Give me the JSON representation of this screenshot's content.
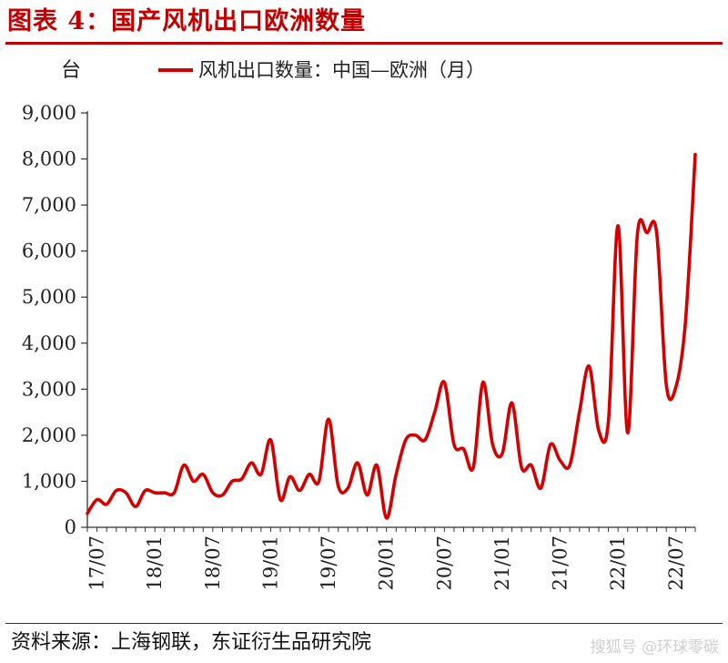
{
  "title": "图表 4：国产风机出口欧洲数量",
  "source": "资料来源：上海钢联，东证衍生品研究院",
  "watermark": "搜狐号 @环球零碳",
  "chart_data": {
    "type": "line",
    "y_unit": "台",
    "ylim": [
      0,
      9000
    ],
    "y_ticks": [
      0,
      1000,
      2000,
      3000,
      4000,
      5000,
      6000,
      7000,
      8000,
      9000
    ],
    "y_tick_labels": [
      "0",
      "1,000",
      "2,000",
      "3,000",
      "4,000",
      "5,000",
      "6,000",
      "7,000",
      "8,000",
      "9,000"
    ],
    "x_tick_labels": [
      "17/07",
      "18/01",
      "18/07",
      "19/01",
      "19/07",
      "20/01",
      "20/07",
      "21/01",
      "21/07",
      "22/01",
      "22/07"
    ],
    "x_tick_index": [
      1,
      7,
      13,
      19,
      25,
      31,
      37,
      43,
      49,
      55,
      61
    ],
    "colors": {
      "line": "#d40000",
      "title": "#c00000"
    },
    "grid": false,
    "legend_position": "top",
    "series": [
      {
        "name": "风机出口数量：中国—欧洲（月）",
        "values": [
          300,
          600,
          500,
          800,
          750,
          450,
          800,
          750,
          750,
          750,
          1350,
          1000,
          1150,
          750,
          700,
          1000,
          1050,
          1400,
          1150,
          1900,
          600,
          1100,
          800,
          1150,
          1000,
          2350,
          900,
          850,
          1400,
          700,
          1350,
          200,
          1150,
          1900,
          2000,
          1900,
          2500,
          3150,
          1800,
          1700,
          1300,
          3150,
          1800,
          1600,
          2700,
          1300,
          1350,
          850,
          1800,
          1450,
          1350,
          2500,
          3500,
          2100,
          2300,
          6550,
          2050,
          6350,
          6400,
          6400,
          3100,
          3050,
          4500,
          8100
        ]
      }
    ]
  }
}
